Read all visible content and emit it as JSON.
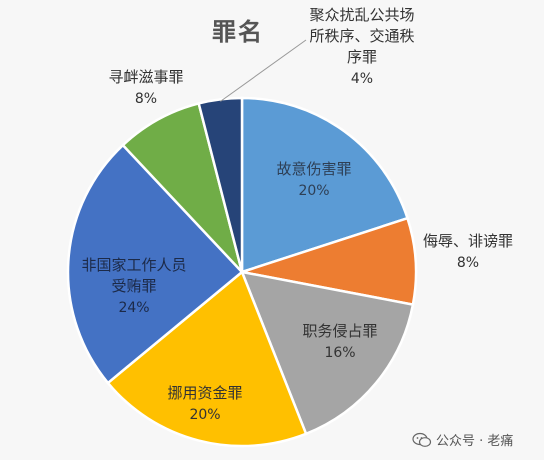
{
  "chart_data": {
    "type": "pie",
    "title": "罪名",
    "slices": [
      {
        "label_lines": [
          "故意伤害罪"
        ],
        "pct_label": "20%",
        "value": 20,
        "color": "#5b9bd5",
        "text_color": "#2e3f55"
      },
      {
        "label_lines": [
          "侮辱、诽谤罪"
        ],
        "pct_label": "8%",
        "value": 8,
        "color": "#ed7d31",
        "text_color": "#333333"
      },
      {
        "label_lines": [
          "职务侵占罪"
        ],
        "pct_label": "16%",
        "value": 16,
        "color": "#a5a5a5",
        "text_color": "#333333"
      },
      {
        "label_lines": [
          "挪用资金罪"
        ],
        "pct_label": "20%",
        "value": 20,
        "color": "#ffc000",
        "text_color": "#333333"
      },
      {
        "label_lines": [
          "非国家工作人员",
          "受贿罪"
        ],
        "pct_label": "24%",
        "value": 24,
        "color": "#4472c4",
        "text_color": "#1c2a48"
      },
      {
        "label_lines": [
          "寻衅滋事罪"
        ],
        "pct_label": "8%",
        "value": 8,
        "color": "#70ad47",
        "text_color": "#333333"
      },
      {
        "label_lines": [
          "聚众扰乱公共场",
          "所秩序、交通秩",
          "序罪"
        ],
        "pct_label": "4%",
        "value": 4,
        "color": "#264478",
        "text_color": "#333333"
      }
    ]
  },
  "watermark": {
    "icon": "wechat-icon",
    "text": "公众号 · 老痛"
  }
}
